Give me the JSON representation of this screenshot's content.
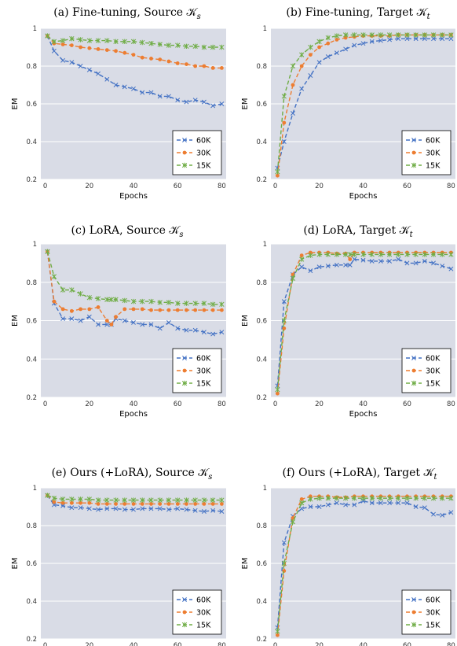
{
  "colors": {
    "plot_bg": "#d9dce6",
    "grid": "#ffffff",
    "series_60K": "#4472c4",
    "series_30K": "#ed7d31",
    "series_15K": "#70ad47"
  },
  "chart_data": [
    {
      "type": "line",
      "title": "(a) Fine-tuning, Source 𝒦",
      "title_sub": "s",
      "xlabel": "Epochs",
      "ylabel": "EM",
      "xlim": [
        -2,
        82
      ],
      "ylim": [
        0.2,
        1.0
      ],
      "xticks": [
        "0",
        "20",
        "40",
        "60",
        "80"
      ],
      "yticks": [
        "0.2",
        "0.4",
        "0.6",
        "0.8",
        "1"
      ],
      "grid": true,
      "legend_position": "bottom-right",
      "x": [
        1,
        4,
        8,
        12,
        16,
        20,
        24,
        28,
        32,
        36,
        40,
        44,
        48,
        52,
        56,
        60,
        64,
        68,
        72,
        76,
        80
      ],
      "series": [
        {
          "name": "60K",
          "marker": "x",
          "values": [
            0.96,
            0.88,
            0.83,
            0.82,
            0.8,
            0.78,
            0.76,
            0.73,
            0.7,
            0.69,
            0.68,
            0.66,
            0.66,
            0.64,
            0.64,
            0.62,
            0.61,
            0.62,
            0.61,
            0.59,
            0.6
          ]
        },
        {
          "name": "30K",
          "marker": "circle",
          "values": [
            0.96,
            0.92,
            0.915,
            0.91,
            0.9,
            0.895,
            0.89,
            0.885,
            0.88,
            0.87,
            0.86,
            0.845,
            0.84,
            0.835,
            0.825,
            0.815,
            0.81,
            0.8,
            0.8,
            0.79,
            0.79
          ]
        },
        {
          "name": "15K",
          "marker": "star",
          "values": [
            0.96,
            0.93,
            0.935,
            0.945,
            0.94,
            0.935,
            0.935,
            0.935,
            0.93,
            0.93,
            0.93,
            0.925,
            0.92,
            0.915,
            0.91,
            0.91,
            0.905,
            0.905,
            0.9,
            0.9,
            0.9
          ]
        }
      ]
    },
    {
      "type": "line",
      "title": "(b) Fine-tuning, Target 𝒦",
      "title_sub": "t",
      "xlabel": "Epochs",
      "ylabel": "EM",
      "xlim": [
        -2,
        82
      ],
      "ylim": [
        0.2,
        1.0
      ],
      "xticks": [
        "0",
        "20",
        "40",
        "60",
        "80"
      ],
      "yticks": [
        "0.2",
        "0.4",
        "0.6",
        "0.8",
        "1"
      ],
      "grid": true,
      "legend_position": "bottom-right",
      "x": [
        1,
        4,
        8,
        12,
        16,
        20,
        24,
        28,
        32,
        36,
        40,
        44,
        48,
        52,
        56,
        60,
        64,
        68,
        72,
        76,
        80
      ],
      "series": [
        {
          "name": "60K",
          "marker": "x",
          "values": [
            0.26,
            0.4,
            0.55,
            0.68,
            0.75,
            0.82,
            0.85,
            0.87,
            0.89,
            0.91,
            0.92,
            0.93,
            0.935,
            0.94,
            0.945,
            0.945,
            0.945,
            0.945,
            0.945,
            0.945,
            0.945
          ]
        },
        {
          "name": "30K",
          "marker": "circle",
          "values": [
            0.22,
            0.5,
            0.7,
            0.8,
            0.86,
            0.9,
            0.92,
            0.94,
            0.95,
            0.955,
            0.96,
            0.96,
            0.96,
            0.96,
            0.965,
            0.965,
            0.965,
            0.965,
            0.965,
            0.965,
            0.965
          ]
        },
        {
          "name": "15K",
          "marker": "star",
          "values": [
            0.24,
            0.64,
            0.8,
            0.86,
            0.9,
            0.93,
            0.95,
            0.96,
            0.965,
            0.965,
            0.965,
            0.965,
            0.965,
            0.965,
            0.965,
            0.965,
            0.965,
            0.965,
            0.965,
            0.965,
            0.965
          ]
        }
      ]
    },
    {
      "type": "line",
      "title": "(c) LoRA, Source 𝒦",
      "title_sub": "s",
      "xlabel": "Epochs",
      "ylabel": "EM",
      "xlim": [
        -2,
        82
      ],
      "ylim": [
        0.2,
        1.0
      ],
      "xticks": [
        "0",
        "20",
        "40",
        "60",
        "80"
      ],
      "yticks": [
        "0.2",
        "0.4",
        "0.6",
        "0.8",
        "1"
      ],
      "grid": true,
      "legend_position": "bottom-right",
      "x": [
        1,
        4,
        8,
        12,
        16,
        20,
        24,
        28,
        30,
        32,
        36,
        40,
        44,
        48,
        52,
        56,
        60,
        64,
        68,
        72,
        76,
        80
      ],
      "series": [
        {
          "name": "60K",
          "marker": "x",
          "values": [
            0.96,
            0.69,
            0.61,
            0.61,
            0.6,
            0.62,
            0.58,
            0.58,
            0.58,
            0.61,
            0.6,
            0.59,
            0.58,
            0.58,
            0.56,
            0.59,
            0.56,
            0.55,
            0.55,
            0.54,
            0.53,
            0.54
          ]
        },
        {
          "name": "30K",
          "marker": "circle",
          "values": [
            0.96,
            0.7,
            0.66,
            0.65,
            0.66,
            0.66,
            0.67,
            0.6,
            0.58,
            0.62,
            0.66,
            0.66,
            0.66,
            0.655,
            0.655,
            0.655,
            0.655,
            0.655,
            0.655,
            0.655,
            0.655,
            0.655
          ]
        },
        {
          "name": "15K",
          "marker": "star",
          "values": [
            0.96,
            0.83,
            0.76,
            0.76,
            0.74,
            0.72,
            0.715,
            0.71,
            0.71,
            0.71,
            0.705,
            0.7,
            0.7,
            0.7,
            0.695,
            0.695,
            0.69,
            0.69,
            0.69,
            0.69,
            0.685,
            0.685
          ]
        }
      ]
    },
    {
      "type": "line",
      "title": "(d) LoRA, Target 𝒦",
      "title_sub": "t",
      "xlabel": "Epochs",
      "ylabel": "EM",
      "xlim": [
        -2,
        82
      ],
      "ylim": [
        0.2,
        1.0
      ],
      "xticks": [
        "0",
        "20",
        "40",
        "60",
        "80"
      ],
      "yticks": [
        "0.2",
        "0.4",
        "0.6",
        "0.8",
        "1"
      ],
      "grid": true,
      "legend_position": "bottom-right",
      "x": [
        1,
        4,
        8,
        12,
        16,
        20,
        24,
        28,
        32,
        34,
        36,
        40,
        44,
        48,
        52,
        56,
        60,
        64,
        68,
        72,
        76,
        80
      ],
      "series": [
        {
          "name": "60K",
          "marker": "x",
          "values": [
            0.26,
            0.7,
            0.84,
            0.88,
            0.86,
            0.88,
            0.885,
            0.89,
            0.89,
            0.89,
            0.92,
            0.915,
            0.91,
            0.91,
            0.91,
            0.92,
            0.9,
            0.9,
            0.91,
            0.9,
            0.885,
            0.87
          ]
        },
        {
          "name": "30K",
          "marker": "circle",
          "values": [
            0.22,
            0.56,
            0.84,
            0.94,
            0.955,
            0.955,
            0.955,
            0.95,
            0.95,
            0.92,
            0.955,
            0.955,
            0.955,
            0.955,
            0.955,
            0.955,
            0.955,
            0.955,
            0.955,
            0.955,
            0.955,
            0.955
          ]
        },
        {
          "name": "15K",
          "marker": "star",
          "values": [
            0.24,
            0.6,
            0.82,
            0.92,
            0.94,
            0.945,
            0.945,
            0.945,
            0.945,
            0.945,
            0.945,
            0.945,
            0.945,
            0.945,
            0.945,
            0.945,
            0.945,
            0.945,
            0.945,
            0.945,
            0.945,
            0.945
          ]
        }
      ]
    },
    {
      "type": "line",
      "title": "(e) Ours (+LoRA), Source 𝒦",
      "title_sub": "s",
      "xlabel": "Epochs",
      "ylabel": "EM",
      "xlim": [
        -2,
        82
      ],
      "ylim": [
        0.2,
        1.0
      ],
      "xticks": [
        "0",
        "20",
        "40",
        "60",
        "80"
      ],
      "yticks": [
        "0.2",
        "0.4",
        "0.6",
        "0.8",
        "1"
      ],
      "grid": true,
      "legend_position": "bottom-right",
      "x": [
        1,
        4,
        8,
        12,
        16,
        20,
        24,
        28,
        32,
        36,
        40,
        44,
        48,
        52,
        56,
        60,
        64,
        68,
        72,
        76,
        80
      ],
      "series": [
        {
          "name": "60K",
          "marker": "x",
          "values": [
            0.96,
            0.91,
            0.905,
            0.895,
            0.895,
            0.89,
            0.885,
            0.89,
            0.89,
            0.885,
            0.885,
            0.89,
            0.89,
            0.89,
            0.885,
            0.89,
            0.885,
            0.88,
            0.875,
            0.88,
            0.875
          ]
        },
        {
          "name": "30K",
          "marker": "circle",
          "values": [
            0.96,
            0.925,
            0.92,
            0.92,
            0.92,
            0.92,
            0.915,
            0.915,
            0.915,
            0.915,
            0.915,
            0.915,
            0.915,
            0.915,
            0.915,
            0.915,
            0.915,
            0.915,
            0.915,
            0.915,
            0.915
          ]
        },
        {
          "name": "15K",
          "marker": "star",
          "values": [
            0.96,
            0.945,
            0.94,
            0.94,
            0.94,
            0.94,
            0.935,
            0.935,
            0.935,
            0.935,
            0.935,
            0.935,
            0.935,
            0.935,
            0.935,
            0.935,
            0.935,
            0.935,
            0.935,
            0.935,
            0.935
          ]
        }
      ]
    },
    {
      "type": "line",
      "title": "(f) Ours (+LoRA), Target 𝒦",
      "title_sub": "t",
      "xlabel": "Epochs",
      "ylabel": "EM",
      "xlim": [
        -2,
        82
      ],
      "ylim": [
        0.2,
        1.0
      ],
      "xticks": [
        "0",
        "20",
        "40",
        "60",
        "80"
      ],
      "yticks": [
        "0.2",
        "0.4",
        "0.6",
        "0.8",
        "1"
      ],
      "grid": true,
      "legend_position": "bottom-right",
      "x": [
        1,
        4,
        8,
        12,
        16,
        20,
        24,
        28,
        32,
        36,
        40,
        44,
        48,
        52,
        56,
        60,
        64,
        68,
        72,
        76,
        80
      ],
      "series": [
        {
          "name": "60K",
          "marker": "x",
          "values": [
            0.26,
            0.71,
            0.85,
            0.89,
            0.9,
            0.9,
            0.91,
            0.92,
            0.91,
            0.91,
            0.93,
            0.92,
            0.92,
            0.92,
            0.92,
            0.92,
            0.9,
            0.895,
            0.86,
            0.855,
            0.87
          ]
        },
        {
          "name": "30K",
          "marker": "circle",
          "values": [
            0.22,
            0.56,
            0.84,
            0.94,
            0.955,
            0.955,
            0.955,
            0.95,
            0.95,
            0.955,
            0.955,
            0.955,
            0.955,
            0.955,
            0.955,
            0.955,
            0.955,
            0.955,
            0.955,
            0.955,
            0.955
          ]
        },
        {
          "name": "15K",
          "marker": "star",
          "values": [
            0.24,
            0.6,
            0.82,
            0.92,
            0.94,
            0.945,
            0.945,
            0.945,
            0.945,
            0.945,
            0.945,
            0.945,
            0.945,
            0.945,
            0.945,
            0.945,
            0.945,
            0.945,
            0.945,
            0.945,
            0.945
          ]
        }
      ]
    }
  ]
}
